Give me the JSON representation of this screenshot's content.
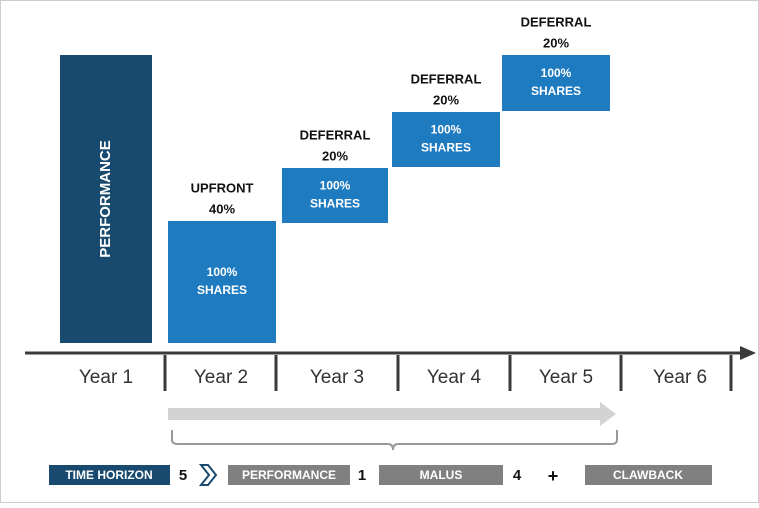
{
  "performance_bar": {
    "label": "PERFORMANCE"
  },
  "blocks": [
    {
      "title": "UPFRONT",
      "share": "40%",
      "content": [
        "100%",
        "SHARES"
      ]
    },
    {
      "title": "DEFERRAL",
      "share": "20%",
      "content": [
        "100%",
        "SHARES"
      ]
    },
    {
      "title": "DEFERRAL",
      "share": "20%",
      "content": [
        "100%",
        "SHARES"
      ]
    },
    {
      "title": "DEFERRAL",
      "share": "20%",
      "content": [
        "100%",
        "SHARES"
      ]
    }
  ],
  "axis": {
    "years": [
      "Year 1",
      "Year 2",
      "Year 3",
      "Year 4",
      "Year 5",
      "Year 6"
    ]
  },
  "legend": {
    "time_horizon": "TIME HORIZON",
    "time_horizon_value": "5",
    "performance": "PERFORMANCE",
    "performance_value": "1",
    "malus": "MALUS",
    "malus_value": "4",
    "plus": "+",
    "clawback": "CLAWBACK"
  }
}
